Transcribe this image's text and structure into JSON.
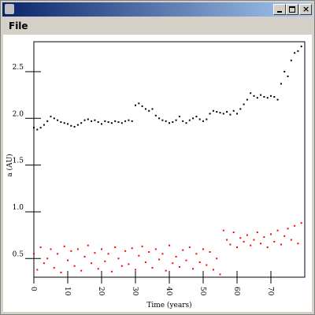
{
  "menu": [
    "File"
  ],
  "chart_data": {
    "type": "scatter",
    "x_label": "Time (years)",
    "y_label": "a (AU)",
    "x": [
      0,
      1,
      2,
      3,
      4,
      5,
      6,
      7,
      8,
      9,
      10,
      11,
      12,
      13,
      14,
      15,
      16,
      17,
      18,
      19,
      20,
      21,
      22,
      23,
      24,
      25,
      26,
      27,
      28,
      29,
      30,
      31,
      32,
      33,
      34,
      35,
      36,
      37,
      38,
      39,
      40,
      41,
      42,
      43,
      44,
      45,
      46,
      47,
      48,
      49,
      50,
      51,
      52,
      53,
      54,
      55,
      56,
      57,
      58,
      59,
      60,
      61,
      62,
      63,
      64,
      65,
      66,
      67,
      68,
      69,
      70,
      71,
      72,
      73,
      74,
      75,
      76,
      77,
      78,
      79
    ],
    "series": [
      {
        "color": "#000000",
        "values": [
          1.9,
          1.88,
          1.9,
          1.93,
          1.97,
          2.02,
          2.0,
          1.98,
          1.96,
          1.95,
          1.94,
          1.92,
          1.91,
          1.93,
          1.95,
          1.98,
          1.99,
          1.97,
          1.98,
          1.96,
          1.94,
          1.97,
          1.96,
          1.95,
          1.97,
          1.96,
          1.95,
          1.97,
          1.98,
          1.97,
          2.14,
          2.16,
          2.13,
          2.1,
          2.08,
          2.1,
          2.03,
          2.0,
          1.98,
          1.97,
          1.95,
          1.96,
          1.98,
          2.02,
          1.97,
          1.95,
          1.98,
          2.0,
          2.02,
          1.99,
          1.97,
          1.99,
          2.05,
          2.08,
          2.07,
          2.06,
          2.05,
          2.07,
          2.04,
          2.08,
          2.05,
          2.1,
          2.15,
          2.2,
          2.27,
          2.24,
          2.22,
          2.25,
          2.23,
          2.22,
          2.24,
          2.23,
          2.2,
          2.37,
          2.5,
          2.45,
          2.62,
          2.7,
          2.72,
          2.77
        ]
      },
      {
        "color": "#ff0000",
        "values": [
          0.55,
          0.38,
          0.62,
          0.45,
          0.5,
          0.6,
          0.4,
          0.55,
          0.35,
          0.63,
          0.48,
          0.58,
          0.42,
          0.6,
          0.37,
          0.52,
          0.64,
          0.45,
          0.56,
          0.39,
          0.6,
          0.47,
          0.55,
          0.36,
          0.62,
          0.5,
          0.42,
          0.58,
          0.44,
          0.61,
          0.38,
          0.53,
          0.63,
          0.46,
          0.57,
          0.4,
          0.6,
          0.49,
          0.55,
          0.37,
          0.64,
          0.45,
          0.52,
          0.41,
          0.59,
          0.48,
          0.62,
          0.39,
          0.55,
          0.46,
          0.6,
          0.43,
          0.57,
          0.38,
          0.5,
          0.33,
          0.8,
          0.7,
          0.65,
          0.78,
          0.62,
          0.72,
          0.68,
          0.75,
          0.64,
          0.7,
          0.78,
          0.66,
          0.73,
          0.62,
          0.76,
          0.68,
          0.8,
          0.65,
          0.74,
          0.82,
          0.7,
          0.85,
          0.66,
          0.88
        ]
      }
    ],
    "xlim": [
      0,
      80
    ],
    "ylim": [
      0.3,
      2.82
    ],
    "xticks": [
      0,
      10,
      20,
      30,
      40,
      50,
      60,
      70
    ],
    "yticks": [
      {
        "value": 0.5,
        "label": "0.5"
      },
      {
        "value": 1.0,
        "label": "1.0"
      },
      {
        "value": 1.5,
        "label": "1.5"
      },
      {
        "value": 2.0,
        "label": "2.0"
      },
      {
        "value": 2.5,
        "label": "2.5"
      }
    ]
  }
}
